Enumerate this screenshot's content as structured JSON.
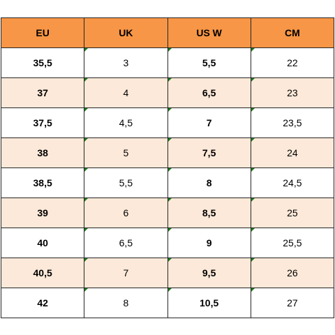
{
  "table": {
    "headers": [
      "EU",
      "UK",
      "US W",
      "CM"
    ],
    "rows": [
      [
        "35,5",
        "3",
        "5,5",
        "22"
      ],
      [
        "37",
        "4",
        "6,5",
        "23"
      ],
      [
        "37,5",
        "4,5",
        "7",
        "23,5"
      ],
      [
        "38",
        "5",
        "7,5",
        "24"
      ],
      [
        "38,5",
        "5,5",
        "8",
        "24,5"
      ],
      [
        "39",
        "6",
        "8,5",
        "25"
      ],
      [
        "40",
        "6,5",
        "9",
        "25,5"
      ],
      [
        "40,5",
        "7",
        "9,5",
        "26"
      ],
      [
        "42",
        "8",
        "10,5",
        "27"
      ]
    ],
    "colors": {
      "header_bg": "#f79646",
      "alt_row_bg": "#fde9d9",
      "border": "#262626",
      "corner_flag": "#1f7a1f"
    }
  }
}
